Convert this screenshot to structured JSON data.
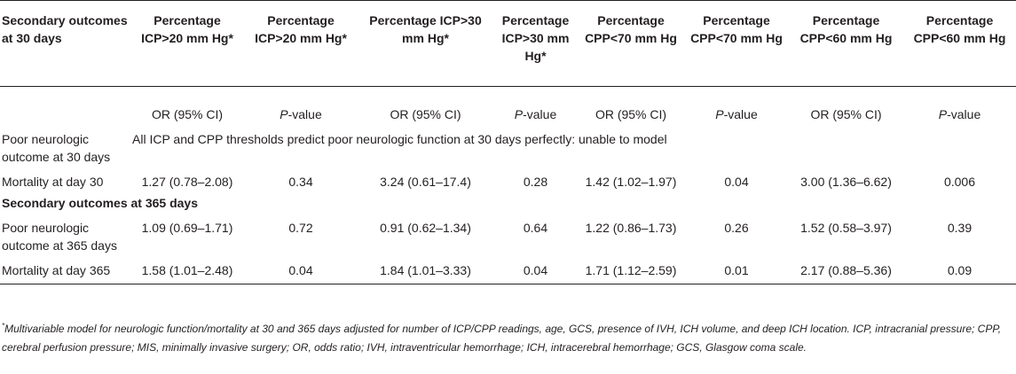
{
  "header": {
    "cols": [
      "Secondary outcomes at 30 days",
      "Percentage ICP>20 mm Hg*",
      "Percentage ICP>20 mm Hg*",
      "Percentage ICP>30 mm Hg*",
      "Percentage ICP>30 mm Hg*",
      "Percentage CPP<70 mm Hg",
      "Percentage CPP<70 mm Hg",
      "Percentage CPP<60 mm Hg",
      "Percentage CPP<60 mm Hg"
    ],
    "sub": [
      "",
      "OR (95% CI)",
      "P",
      "OR (95% CI)",
      "P",
      "OR (95% CI)",
      "P",
      "OR (95% CI)",
      "P"
    ],
    "pvalue_suffix": "-value"
  },
  "rows": {
    "poor30": {
      "label": "Poor neurologic outcome at 30 days",
      "note": "All ICP and CPP thresholds predict poor neurologic function at 30 days perfectly: unable to model"
    },
    "mort30": {
      "label": "Mortality at day 30",
      "values": [
        "1.27 (0.78–2.08)",
        "0.34",
        "3.24 (0.61–17.4)",
        "0.28",
        "1.42 (1.02–1.97)",
        "0.04",
        "3.00 (1.36–6.62)",
        "0.006"
      ]
    },
    "section365": "Secondary outcomes at 365 days",
    "poor365": {
      "label": "Poor neurologic outcome at 365 days",
      "values": [
        "1.09 (0.69–1.71)",
        "0.72",
        "0.91 (0.62–1.34)",
        "0.64",
        "1.22 (0.86–1.73)",
        "0.26",
        "1.52 (0.58–3.97)",
        "0.39"
      ]
    },
    "mort365": {
      "label": "Mortality at day 365",
      "values": [
        "1.58 (1.01–2.48)",
        "0.04",
        "1.84 (1.01–3.33)",
        "0.04",
        "1.71 (1.12–2.59)",
        "0.01",
        "2.17 (0.88–5.36)",
        "0.09"
      ]
    }
  },
  "footnote": {
    "marker": "*",
    "text": "Multivariable model for neurologic function/mortality at 30 and 365 days adjusted for number of ICP/CPP readings, age, GCS, presence of IVH, ICH volume, and deep ICH location. ICP, intracranial pressure; CPP, cerebral perfusion pressure; MIS, minimally invasive surgery; OR, odds ratio; IVH, intraventricular hemorrhage; ICH, intracerebral hemorrhage; GCS, Glasgow coma scale."
  }
}
